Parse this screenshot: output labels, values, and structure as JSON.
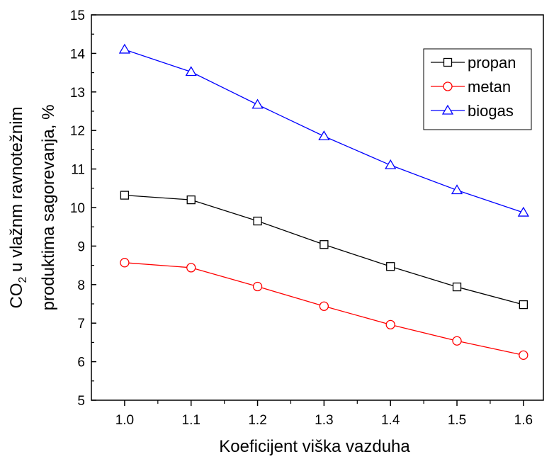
{
  "chart_data": {
    "type": "line",
    "title": "",
    "xlabel": "Koeficijent viška vazduha",
    "ylabel_line1_prefix": "CO",
    "ylabel_line1_subscript": "2",
    "ylabel_line1_suffix": " u vlažnm ravnotežnim",
    "ylabel_line2": "produktima sagorevanja, %",
    "xlim": [
      0.95,
      1.63
    ],
    "ylim": [
      5,
      15
    ],
    "x": [
      1.0,
      1.1,
      1.2,
      1.3,
      1.4,
      1.5,
      1.6
    ],
    "x_tick_labels": [
      "1.0",
      "1.1",
      "1.2",
      "1.3",
      "1.4",
      "1.5",
      "1.6"
    ],
    "y_ticks": [
      5,
      6,
      7,
      8,
      9,
      10,
      11,
      12,
      13,
      14,
      15
    ],
    "y_tick_labels": [
      "5",
      "6",
      "7",
      "8",
      "9",
      "10",
      "11",
      "12",
      "13",
      "14",
      "15"
    ],
    "grid": false,
    "legend_position": "top-right",
    "series": [
      {
        "name": "propan",
        "color": "#000000",
        "marker": "square",
        "values": [
          10.32,
          10.2,
          9.65,
          9.04,
          8.47,
          7.94,
          7.48
        ]
      },
      {
        "name": "metan",
        "color": "#ff0000",
        "marker": "circle",
        "values": [
          8.57,
          8.44,
          7.95,
          7.44,
          6.96,
          6.54,
          6.17
        ]
      },
      {
        "name": "biogas",
        "color": "#0000ff",
        "marker": "triangle",
        "values": [
          14.1,
          13.52,
          12.67,
          11.85,
          11.1,
          10.45,
          9.87
        ]
      }
    ]
  }
}
